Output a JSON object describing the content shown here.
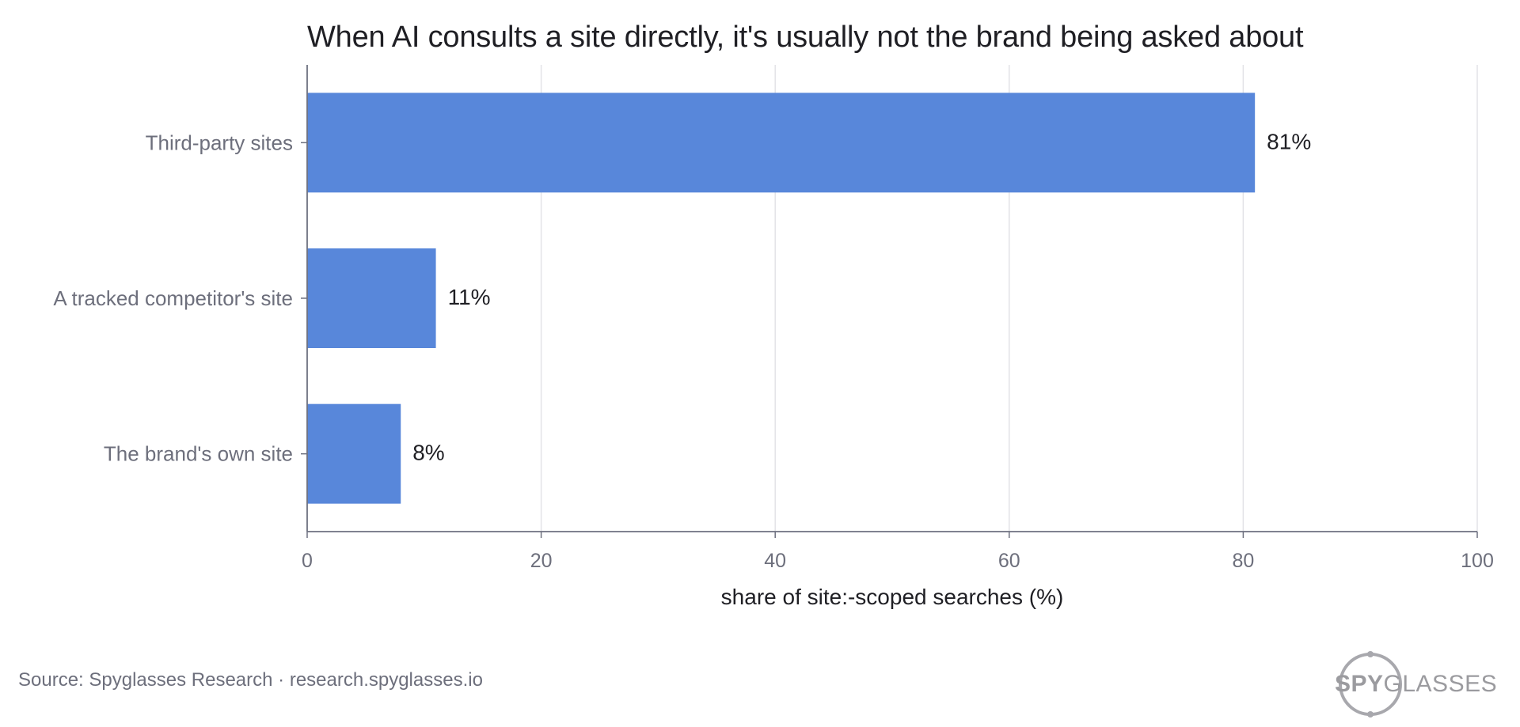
{
  "chart_data": {
    "type": "bar",
    "orientation": "horizontal",
    "title": "When AI consults a site directly, it's usually not the brand being asked about",
    "categories": [
      "Third-party sites",
      "A tracked competitor's site",
      "The brand's own site"
    ],
    "values": [
      81,
      11,
      8
    ],
    "data_labels": [
      "81%",
      "11%",
      "8%"
    ],
    "xlabel": "share of site:-scoped searches  (%)",
    "ylabel": "",
    "xlim": [
      0,
      100
    ],
    "x_ticks": [
      0,
      20,
      40,
      60,
      80,
      100
    ],
    "grid": true,
    "legend": "none",
    "bar_color": "#5887da"
  },
  "footer": {
    "source": "Source: Spyglasses Research · research.spyglasses.io"
  },
  "logo": {
    "text_bold": "SPY",
    "text_light": "GLASSES",
    "color": "#9b9b9f"
  }
}
